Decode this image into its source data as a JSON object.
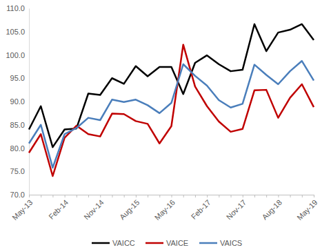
{
  "chart_data": {
    "type": "line",
    "categories": [
      "May-13",
      null,
      null,
      "Feb-14",
      null,
      null,
      "Nov-14",
      null,
      null,
      "Aug-15",
      null,
      null,
      "May-16",
      null,
      null,
      "Feb-17",
      null,
      null,
      "Nov-17",
      null,
      null,
      "Aug-18",
      null,
      null,
      "May-19"
    ],
    "series": [
      {
        "name": "VAICC",
        "color": "#000000",
        "values": [
          84.0,
          89.0,
          80.2,
          84.0,
          84.2,
          91.7,
          91.4,
          95.0,
          93.8,
          97.6,
          95.4,
          97.4,
          97.4,
          91.6,
          98.3,
          99.9,
          98.0,
          96.5,
          96.8,
          106.6,
          100.8,
          104.8,
          105.4,
          106.6,
          103.2
        ]
      },
      {
        "name": "VAICE",
        "color": "#c00000",
        "values": [
          79.0,
          83.0,
          74.0,
          82.2,
          84.8,
          83.0,
          82.5,
          87.4,
          87.3,
          85.8,
          85.2,
          81.0,
          84.7,
          102.2,
          93.2,
          89.0,
          85.7,
          83.5,
          84.1,
          92.4,
          92.5,
          86.5,
          90.8,
          93.7,
          88.8
        ]
      },
      {
        "name": "VAICS",
        "color": "#4a7ebb",
        "values": [
          81.0,
          85.0,
          75.8,
          83.0,
          84.3,
          86.5,
          86.0,
          90.4,
          89.9,
          90.4,
          89.2,
          87.5,
          89.7,
          98.0,
          95.5,
          93.4,
          90.3,
          88.7,
          89.5,
          97.9,
          95.7,
          93.7,
          96.5,
          98.7,
          94.5
        ]
      }
    ],
    "ylim": [
      70,
      110
    ],
    "yticks": [
      {
        "value": 70,
        "label": "70.0"
      },
      {
        "value": 75,
        "label": "75.0"
      },
      {
        "value": 80,
        "label": "80.0"
      },
      {
        "value": 85,
        "label": "85.0"
      },
      {
        "value": 90,
        "label": "90.0"
      },
      {
        "value": 95,
        "label": "95.0"
      },
      {
        "value": 100,
        "label": "100.0"
      },
      {
        "value": 105,
        "label": "105.0"
      },
      {
        "value": 110,
        "label": "110.0"
      }
    ],
    "grid": false,
    "legend": "bottom"
  }
}
